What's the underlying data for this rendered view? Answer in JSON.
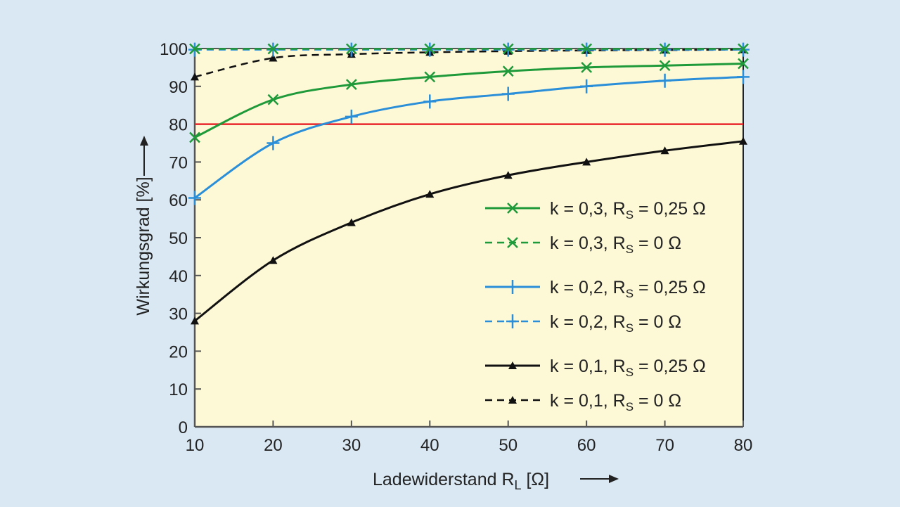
{
  "chart_data": {
    "type": "line",
    "title": "",
    "xlabel": "Ladewiderstand R_L [Ω]",
    "xlabel_main": "Ladewiderstand R",
    "xlabel_sub": "L",
    "xlabel_unit": " [Ω]",
    "ylabel": "Wirkungsgrad [%]",
    "x": [
      10,
      20,
      30,
      40,
      50,
      60,
      70,
      80
    ],
    "xlim": [
      10,
      80
    ],
    "ylim": [
      0,
      100
    ],
    "xticks": [
      10,
      20,
      30,
      40,
      50,
      60,
      70,
      80
    ],
    "yticks": [
      0,
      10,
      20,
      30,
      40,
      50,
      60,
      70,
      80,
      90,
      100
    ],
    "grid": false,
    "legend_position": "bottom-right",
    "reference_line": {
      "y": 80,
      "color": "#e8262b"
    },
    "series": [
      {
        "name": "k = 0,3, R_S = 0,25 Ω",
        "k": "k = 0,3, R",
        "sub": "S",
        "rest": " = 0,25 Ω",
        "color": "#1f9a3a",
        "dash": false,
        "marker": "x",
        "values": [
          76.5,
          86.5,
          90.5,
          92.5,
          94,
          95,
          95.5,
          96
        ]
      },
      {
        "name": "k = 0,3, R_S = 0 Ω",
        "k": "k = 0,3, R",
        "sub": "S",
        "rest": " = 0 Ω",
        "color": "#1f9a3a",
        "dash": true,
        "marker": "x",
        "values": [
          99.9,
          99.9,
          99.9,
          99.9,
          99.9,
          99.9,
          99.9,
          99.9
        ]
      },
      {
        "name": "k = 0,2, R_S = 0,25 Ω",
        "k": "k = 0,2, R",
        "sub": "S",
        "rest": " = 0,25 Ω",
        "color": "#2a8fd8",
        "dash": false,
        "marker": "+",
        "values": [
          60.5,
          75,
          82,
          86,
          88,
          90,
          91.5,
          92.5
        ]
      },
      {
        "name": "k = 0,2, R_S = 0 Ω",
        "k": "k = 0,2, R",
        "sub": "S",
        "rest": " = 0 Ω",
        "color": "#2a8fd8",
        "dash": true,
        "marker": "+",
        "values": [
          99.7,
          99.7,
          99.7,
          99.7,
          99.7,
          99.7,
          99.7,
          99.7
        ]
      },
      {
        "name": "k = 0,1, R_S = 0,25 Ω",
        "k": "k = 0,1, R",
        "sub": "S",
        "rest": " = 0,25 Ω",
        "color": "#111111",
        "dash": false,
        "marker": "triangle",
        "values": [
          28,
          44,
          54,
          61.5,
          66.5,
          70,
          73,
          75.5
        ]
      },
      {
        "name": "k = 0,1, R_S = 0 Ω",
        "k": "k = 0,1, R",
        "sub": "S",
        "rest": " = 0 Ω",
        "color": "#111111",
        "dash": true,
        "marker": "triangle",
        "values": [
          92.5,
          97.5,
          98.5,
          99,
          99.3,
          99.5,
          99.6,
          99.7
        ]
      }
    ],
    "colors": {
      "background": "#dae8f4",
      "plot": "#fdf8d6"
    }
  }
}
